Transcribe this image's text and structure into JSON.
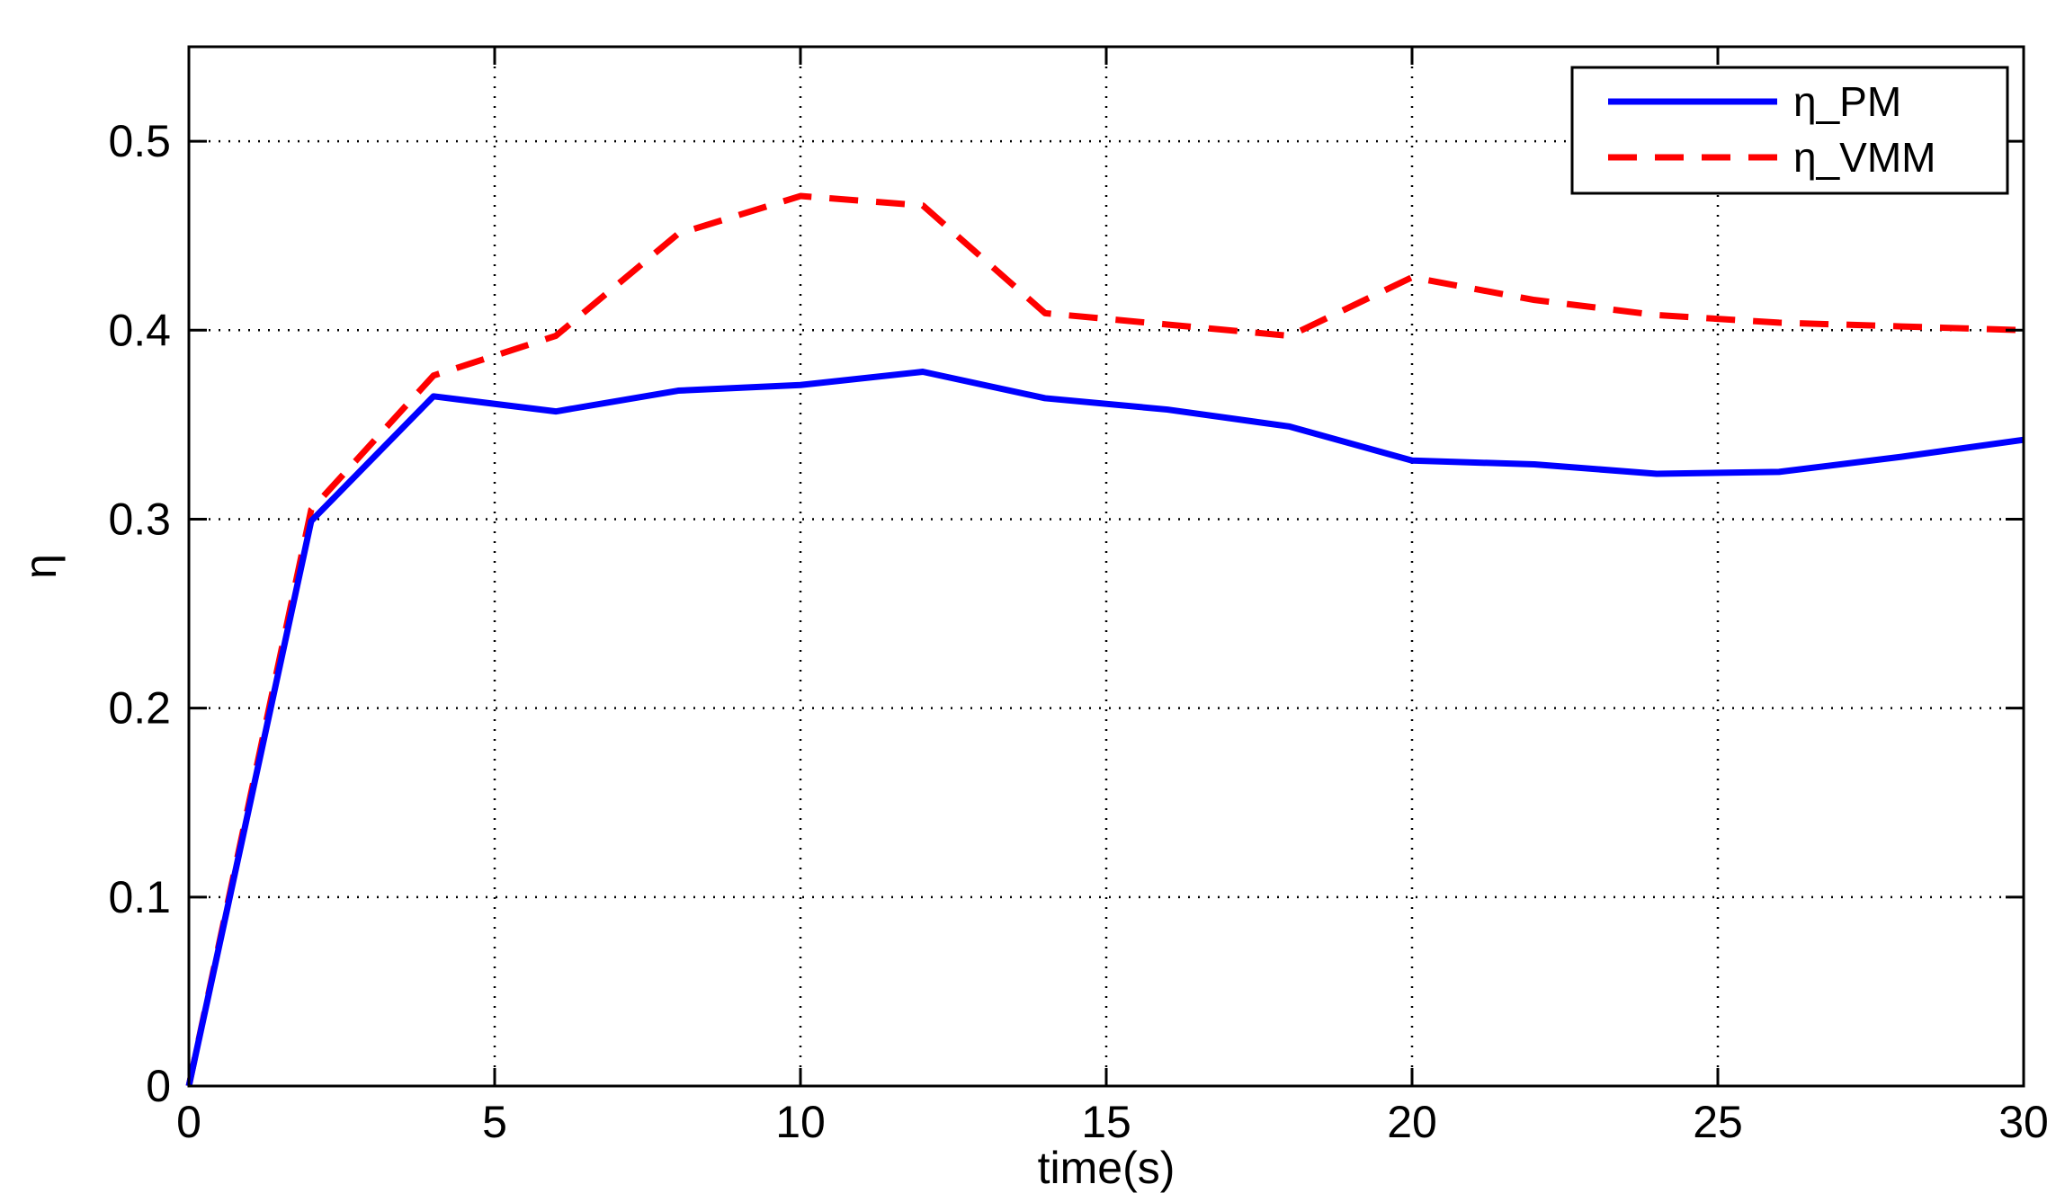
{
  "chart_data": {
    "type": "line",
    "title": "",
    "xlabel": "time(s)",
    "ylabel": "η",
    "xlim": [
      0,
      30
    ],
    "ylim": [
      0,
      0.55
    ],
    "xticks": [
      0,
      5,
      10,
      15,
      20,
      25,
      30
    ],
    "xtick_labels": [
      "0",
      "5",
      "10",
      "15",
      "20",
      "25",
      "30"
    ],
    "yticks": [
      0,
      0.1,
      0.2,
      0.3,
      0.4,
      0.5
    ],
    "ytick_labels": [
      "0",
      "0.1",
      "0.2",
      "0.3",
      "0.4",
      "0.5"
    ],
    "grid": true,
    "legend_position": "top-right",
    "x": [
      0,
      2,
      4,
      6,
      8,
      10,
      12,
      14,
      16,
      18,
      20,
      22,
      24,
      26,
      28,
      30
    ],
    "series": [
      {
        "name": "η_PM",
        "color": "#0000ff",
        "style": "solid",
        "values": [
          0.0,
          0.299,
          0.365,
          0.357,
          0.368,
          0.371,
          0.378,
          0.364,
          0.358,
          0.349,
          0.331,
          0.329,
          0.324,
          0.325,
          0.333,
          0.342
        ]
      },
      {
        "name": "η_VMM",
        "color": "#ff0000",
        "style": "dashed",
        "values": [
          0.0,
          0.305,
          0.376,
          0.397,
          0.451,
          0.471,
          0.466,
          0.409,
          0.403,
          0.397,
          0.428,
          0.416,
          0.408,
          0.404,
          0.402,
          0.4
        ]
      }
    ]
  }
}
